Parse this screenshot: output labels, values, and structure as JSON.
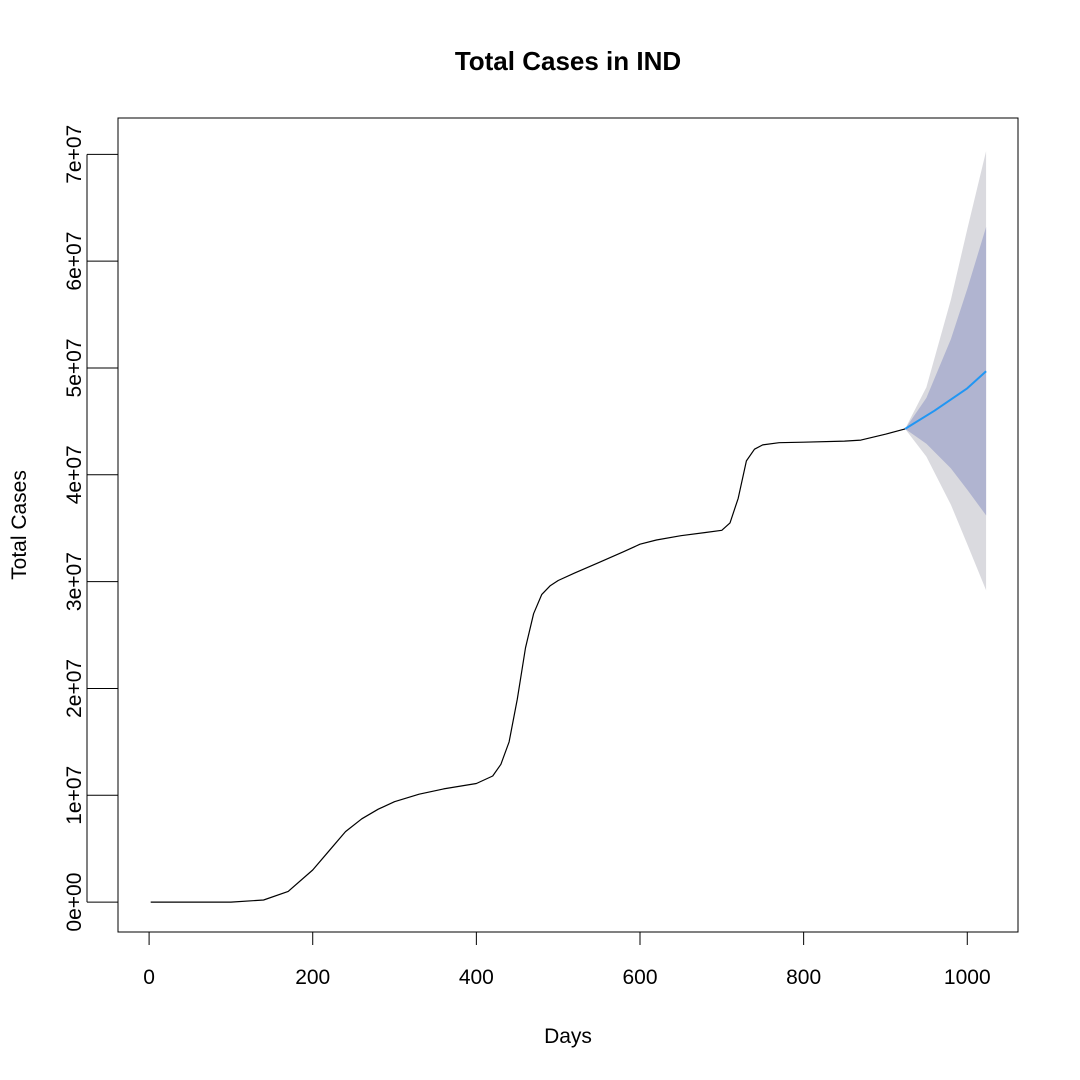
{
  "chart_data": {
    "type": "line",
    "title": "Total Cases in IND",
    "xlabel": "Days",
    "ylabel": "Total Cases",
    "xlim": [
      -38,
      1062
    ],
    "ylim": [
      -2800000,
      73400000
    ],
    "x_ticks": [
      0,
      200,
      400,
      600,
      800,
      1000
    ],
    "x_tick_labels": [
      "0",
      "200",
      "400",
      "600",
      "800",
      "1000"
    ],
    "y_ticks": [
      0,
      10000000,
      20000000,
      30000000,
      40000000,
      50000000,
      60000000,
      70000000
    ],
    "y_tick_labels": [
      "0e+00",
      "1e+07",
      "2e+07",
      "3e+07",
      "4e+07",
      "5e+07",
      "6e+07",
      "7e+07"
    ],
    "grid": false,
    "colors": {
      "observed": "#000000",
      "forecast": "#2196F3",
      "band_80": "#B0B4D0",
      "band_95": "#DADADF"
    },
    "series": [
      {
        "role": "observed",
        "x": [
          2,
          100,
          140,
          170,
          200,
          220,
          240,
          260,
          280,
          300,
          330,
          360,
          400,
          420,
          430,
          440,
          450,
          460,
          470,
          480,
          490,
          500,
          520,
          550,
          580,
          600,
          620,
          650,
          680,
          700,
          710,
          720,
          730,
          740,
          750,
          770,
          800,
          850,
          870,
          900,
          924
        ],
        "y": [
          0,
          0,
          200000,
          1000000,
          3000000,
          4800000,
          6600000,
          7800000,
          8700000,
          9400000,
          10100000,
          10600000,
          11100000,
          11800000,
          12900000,
          15000000,
          19000000,
          23800000,
          27000000,
          28800000,
          29600000,
          30100000,
          30800000,
          31800000,
          32800000,
          33500000,
          33900000,
          34300000,
          34600000,
          34800000,
          35500000,
          37800000,
          41300000,
          42400000,
          42800000,
          43000000,
          43050000,
          43150000,
          43250000,
          43800000,
          44300000
        ]
      },
      {
        "role": "forecast",
        "x": [
          924,
          960,
          1000,
          1023
        ],
        "y": [
          44300000,
          46000000,
          48100000,
          49700000
        ]
      }
    ],
    "intervals": [
      {
        "level": "80%",
        "x": [
          924,
          950,
          980,
          1000,
          1023
        ],
        "lower": [
          44300000,
          42900000,
          40600000,
          38600000,
          36200000
        ],
        "upper": [
          44300000,
          47200000,
          52700000,
          57400000,
          63200000
        ]
      },
      {
        "level": "95%",
        "x": [
          924,
          950,
          980,
          1000,
          1023
        ],
        "lower": [
          44300000,
          41700000,
          37200000,
          33500000,
          29200000
        ],
        "upper": [
          44300000,
          48200000,
          56400000,
          63000000,
          70300000
        ]
      }
    ]
  }
}
